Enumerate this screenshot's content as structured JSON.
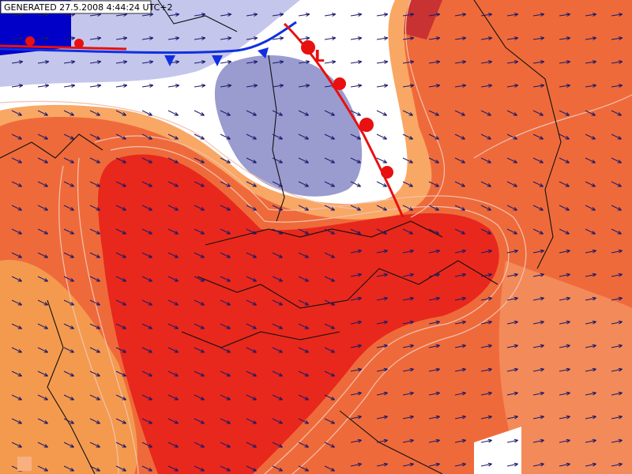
{
  "header": {
    "generated": "GENERATED 27.5.2008 4:44:24 UTC+2"
  },
  "map": {
    "low_label": "L"
  }
}
